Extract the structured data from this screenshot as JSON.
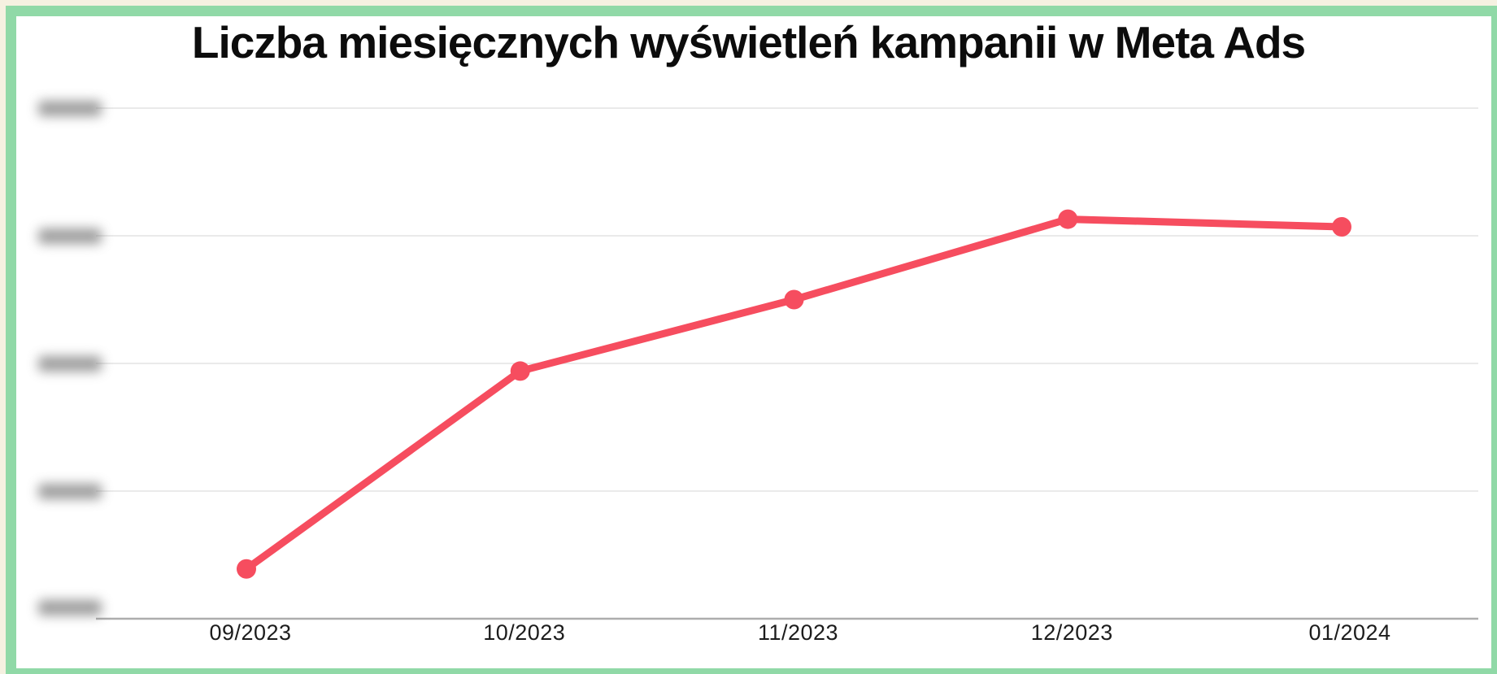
{
  "title": "Liczba miesięcznych wyświetleń kampanii w Meta Ads",
  "colors": {
    "outer_background": "#f5f1e1",
    "frame_border": "#90d9a7",
    "card_background": "#ffffff",
    "line": "#f64d5f",
    "marker": "#f64d5f",
    "gridline": "#e3e3e3",
    "axis_line": "#adadad",
    "title_text": "#0c0c0c",
    "tick_text": "#1c1c1c"
  },
  "chart_data": {
    "type": "line",
    "title": "Liczba miesięcznych wyświetleń kampanii w Meta Ads",
    "categories": [
      "09/2023",
      "10/2023",
      "11/2023",
      "12/2023",
      "01/2024"
    ],
    "series": [
      {
        "values": [
          0.39,
          1.94,
          2.5,
          3.13,
          3.07
        ]
      }
    ],
    "y_axis": {
      "gridline_count": 5,
      "ylim": [
        0,
        4
      ],
      "unit": "gridline-steps (tick labels blurred/redacted in source image)",
      "tick_labels_blurred": true
    },
    "x_axis": {
      "tick_labels": [
        "09/2023",
        "10/2023",
        "11/2023",
        "12/2023",
        "01/2024"
      ]
    },
    "grid": true,
    "legend": false,
    "marker_style": "filled-circle"
  }
}
